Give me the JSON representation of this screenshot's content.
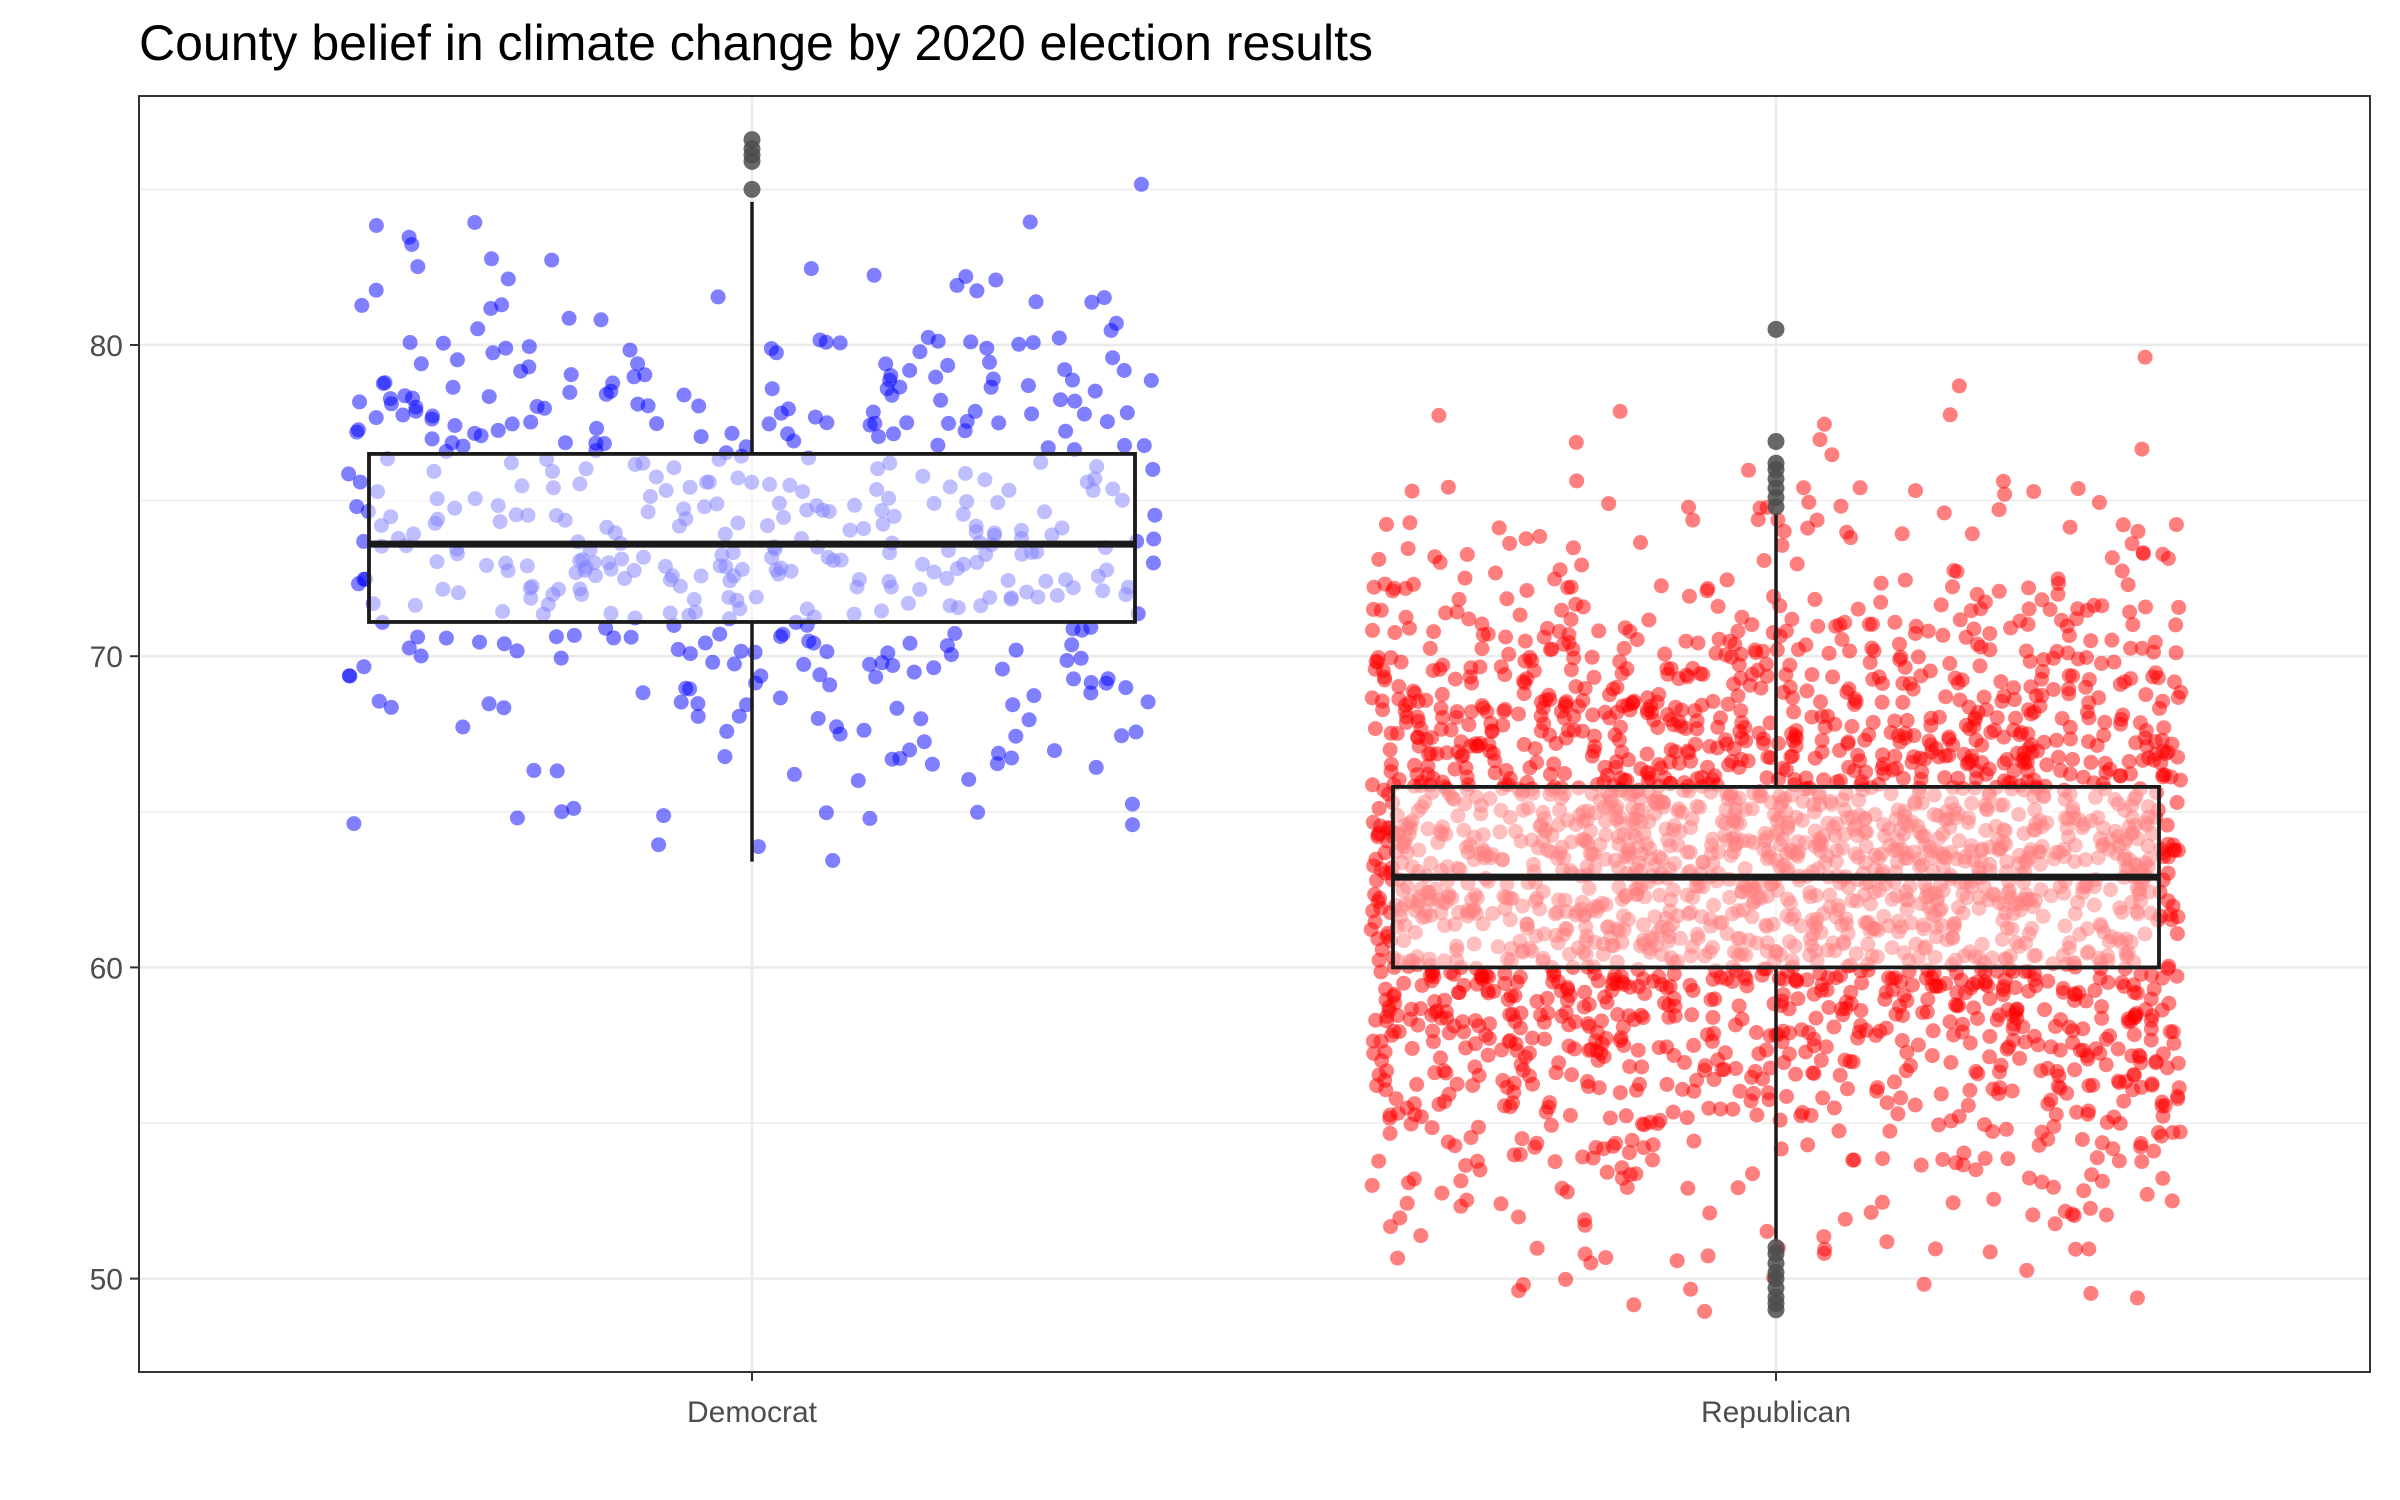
{
  "chart_data": {
    "type": "boxplot-jitter",
    "title": "County belief in climate change by 2020 election results",
    "xlabel": "",
    "ylabel": "",
    "categories": [
      "Democrat",
      "Republican"
    ],
    "ylim": [
      47,
      88
    ],
    "y_ticks": [
      50,
      60,
      70,
      80
    ],
    "grid": true,
    "legend": "none",
    "series": [
      {
        "category": "Democrat",
        "color": "#0000ff",
        "point_count": 500,
        "box": {
          "q1": 71.1,
          "median": 73.6,
          "q3": 76.5,
          "whisker_low": 63.4,
          "whisker_high": 84.6
        },
        "outliers": [
          85.0,
          85.9,
          86.1,
          86.3,
          86.6
        ],
        "point_range": [
          63.4,
          86.6
        ]
      },
      {
        "category": "Republican",
        "color": "#ff0000",
        "point_count": 2600,
        "box": {
          "q1": 60.0,
          "median": 62.9,
          "q3": 65.8,
          "whisker_low": 51.2,
          "whisker_high": 74.6
        },
        "outliers": [
          49.0,
          49.2,
          49.4,
          49.7,
          50.0,
          50.2,
          50.5,
          50.8,
          51.0,
          74.8,
          75.1,
          75.4,
          75.7,
          76.0,
          76.2,
          76.9,
          80.5
        ],
        "point_range": [
          48.9,
          80.5
        ]
      }
    ]
  },
  "colors": {
    "democrat": "#0000ff",
    "republican": "#ff0000",
    "box_line": "#1a1a1a",
    "grid": "#ebebeb",
    "outlier": "#4d4d4d"
  }
}
